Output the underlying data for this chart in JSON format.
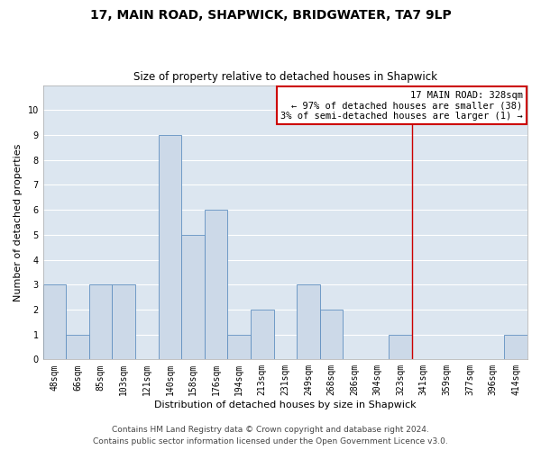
{
  "title": "17, MAIN ROAD, SHAPWICK, BRIDGWATER, TA7 9LP",
  "subtitle": "Size of property relative to detached houses in Shapwick",
  "xlabel": "Distribution of detached houses by size in Shapwick",
  "ylabel": "Number of detached properties",
  "bins": [
    "48sqm",
    "66sqm",
    "85sqm",
    "103sqm",
    "121sqm",
    "140sqm",
    "158sqm",
    "176sqm",
    "194sqm",
    "213sqm",
    "231sqm",
    "249sqm",
    "268sqm",
    "286sqm",
    "304sqm",
    "323sqm",
    "341sqm",
    "359sqm",
    "377sqm",
    "396sqm",
    "414sqm"
  ],
  "values": [
    3,
    1,
    3,
    3,
    0,
    9,
    5,
    6,
    1,
    2,
    0,
    3,
    2,
    0,
    0,
    1,
    0,
    0,
    0,
    0,
    1
  ],
  "bar_color": "#ccd9e8",
  "bar_edge_color": "#6090c0",
  "vline_x_index": 15.5,
  "vline_color": "#cc0000",
  "annotation_text": "17 MAIN ROAD: 328sqm\n← 97% of detached houses are smaller (38)\n3% of semi-detached houses are larger (1) →",
  "annotation_box_color": "#cc0000",
  "ylim": [
    0,
    11
  ],
  "yticks": [
    0,
    1,
    2,
    3,
    4,
    5,
    6,
    7,
    8,
    9,
    10,
    11
  ],
  "bg_color": "#dce6f0",
  "footer": "Contains HM Land Registry data © Crown copyright and database right 2024.\nContains public sector information licensed under the Open Government Licence v3.0.",
  "title_fontsize": 10,
  "subtitle_fontsize": 8.5,
  "xlabel_fontsize": 8,
  "ylabel_fontsize": 8,
  "tick_fontsize": 7,
  "footer_fontsize": 6.5,
  "ann_fontsize": 7.5
}
